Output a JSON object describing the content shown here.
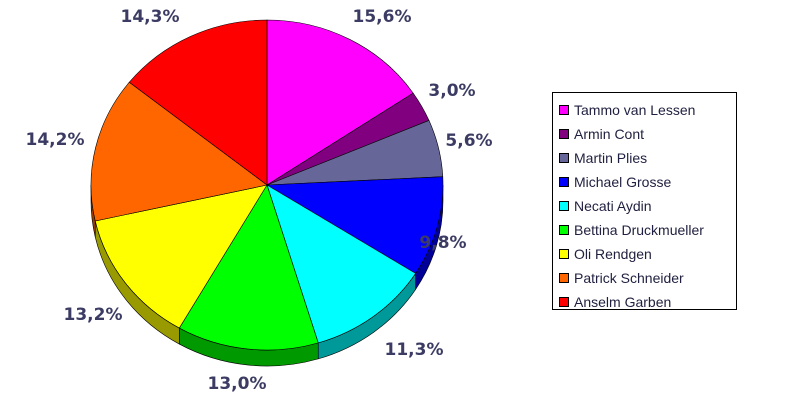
{
  "chart_data": {
    "type": "pie",
    "categories": [
      "Tammo van Lessen",
      "Armin Cont",
      "Martin Plies",
      "Michael Grosse",
      "Necati Aydin",
      "Bettina Druckmueller",
      "Oli Rendgen",
      "Patrick Schneider",
      "Anselm Garben"
    ],
    "values": [
      15.6,
      3.0,
      5.6,
      9.8,
      11.3,
      13.0,
      13.2,
      14.2,
      14.3
    ],
    "value_labels": [
      "15,6%",
      "3,0%",
      "5,6%",
      "9,8%",
      "11,3%",
      "13,0%",
      "13,2%",
      "14,2%",
      "14,3%"
    ],
    "colors": [
      "#ff00ff",
      "#800080",
      "#666699",
      "#0000ff",
      "#00ffff",
      "#00ff00",
      "#ffff00",
      "#ff6600",
      "#ff0000"
    ],
    "side_colors": [
      "#990099",
      "#4d004d",
      "#3d3d5c",
      "#000099",
      "#009999",
      "#009900",
      "#999900",
      "#993d00",
      "#990000"
    ],
    "legend_position": "right",
    "style": "3d"
  }
}
